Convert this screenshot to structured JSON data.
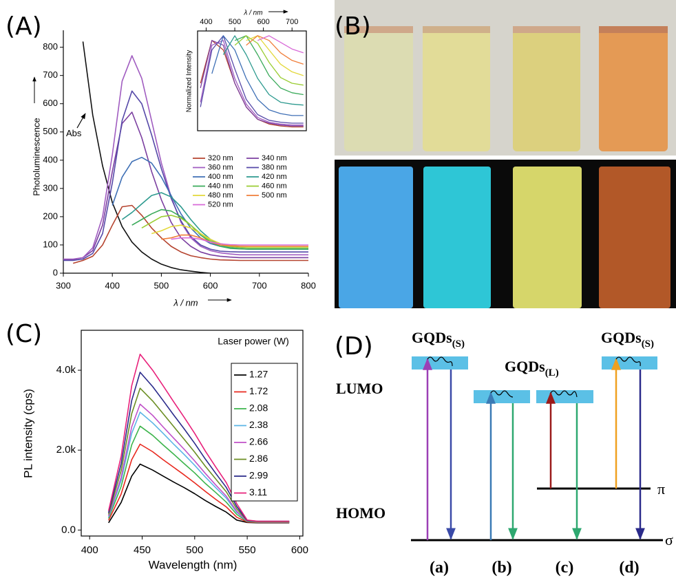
{
  "chart_data": [
    {
      "type": "line",
      "x_label": "λ / nm",
      "y_label": "Photoluminescence",
      "annotation": "Abs",
      "xlim": [
        300,
        800
      ],
      "ylim": [
        0,
        860
      ],
      "xticks": [
        300,
        400,
        500,
        600,
        700,
        800
      ],
      "yticks": [
        0,
        100,
        200,
        300,
        400,
        500,
        600,
        700,
        800
      ],
      "legend": "right",
      "x": [
        300,
        320,
        340,
        360,
        380,
        400,
        420,
        440,
        460,
        480,
        500,
        520,
        540,
        560,
        580,
        600,
        620,
        640,
        660,
        680,
        700,
        720,
        740,
        760,
        780,
        800
      ],
      "series": [
        {
          "name": "Abs",
          "color": "#111111",
          "values": [
            null,
            null,
            820,
            560,
            380,
            250,
            165,
            110,
            75,
            50,
            32,
            20,
            12,
            7,
            3,
            0,
            null,
            null,
            null,
            null,
            null,
            null,
            null,
            null,
            null,
            null
          ]
        },
        {
          "name": "320 nm",
          "color": "#b5432e",
          "values": [
            null,
            35,
            45,
            60,
            100,
            170,
            235,
            240,
            205,
            160,
            125,
            95,
            75,
            62,
            55,
            50,
            47,
            46,
            45,
            45,
            45,
            45,
            45,
            45,
            45,
            45
          ]
        },
        {
          "name": "340 nm",
          "color": "#7b3fa0",
          "values": [
            48,
            48,
            55,
            80,
            170,
            360,
            530,
            570,
            480,
            360,
            260,
            180,
            125,
            95,
            75,
            65,
            60,
            57,
            55,
            55,
            55,
            55,
            55,
            55,
            55,
            55
          ]
        },
        {
          "name": "360 nm",
          "color": "#a05cc0",
          "values": [
            50,
            50,
            55,
            90,
            200,
            420,
            680,
            770,
            690,
            540,
            390,
            270,
            180,
            125,
            95,
            80,
            72,
            68,
            65,
            65,
            65,
            65,
            65,
            65,
            65,
            65
          ]
        },
        {
          "name": "380 nm",
          "color": "#5548a8",
          "values": [
            45,
            45,
            50,
            70,
            140,
            320,
            540,
            645,
            600,
            490,
            370,
            265,
            185,
            130,
            100,
            85,
            78,
            76,
            75,
            75,
            75,
            75,
            75,
            75,
            75,
            75
          ]
        },
        {
          "name": "400 nm",
          "color": "#3e6fb5",
          "values": [
            null,
            null,
            null,
            null,
            null,
            240,
            340,
            395,
            410,
            390,
            340,
            275,
            210,
            160,
            125,
            105,
            95,
            90,
            87,
            85,
            85,
            85,
            85,
            85,
            85,
            85
          ]
        },
        {
          "name": "420 nm",
          "color": "#2d9a8f",
          "values": [
            null,
            null,
            null,
            null,
            null,
            null,
            190,
            215,
            245,
            275,
            285,
            270,
            235,
            190,
            150,
            120,
            100,
            90,
            87,
            85,
            85,
            85,
            85,
            85,
            85,
            85
          ]
        },
        {
          "name": "440 nm",
          "color": "#3aaa5a",
          "values": [
            null,
            null,
            null,
            null,
            null,
            null,
            null,
            170,
            190,
            210,
            225,
            220,
            200,
            170,
            135,
            110,
            95,
            88,
            86,
            85,
            85,
            85,
            85,
            85,
            85,
            85
          ]
        },
        {
          "name": "460 nm",
          "color": "#9acd32",
          "values": [
            null,
            null,
            null,
            null,
            null,
            null,
            null,
            null,
            160,
            180,
            200,
            205,
            195,
            170,
            140,
            115,
            100,
            94,
            91,
            90,
            90,
            90,
            90,
            90,
            90,
            90
          ]
        },
        {
          "name": "480 nm",
          "color": "#e3d83a",
          "values": [
            null,
            null,
            null,
            null,
            null,
            null,
            null,
            null,
            null,
            140,
            150,
            165,
            170,
            160,
            140,
            120,
            105,
            98,
            96,
            95,
            95,
            95,
            95,
            95,
            95,
            95
          ]
        },
        {
          "name": "500 nm",
          "color": "#f07e3a",
          "values": [
            null,
            null,
            null,
            null,
            null,
            null,
            null,
            null,
            null,
            null,
            120,
            125,
            135,
            135,
            125,
            110,
            100,
            97,
            95,
            95,
            95,
            95,
            95,
            95,
            95,
            95
          ]
        },
        {
          "name": "520 nm",
          "color": "#d86ad8",
          "values": [
            null,
            null,
            null,
            null,
            null,
            null,
            null,
            null,
            null,
            null,
            null,
            120,
            125,
            125,
            120,
            110,
            104,
            101,
            100,
            100,
            100,
            100,
            100,
            100,
            100,
            100
          ]
        }
      ]
    },
    {
      "type": "line",
      "x_label": "λ / nm",
      "y_label": "Normalized Intensity",
      "xlim": [
        370,
        750
      ],
      "ylim": [
        0,
        1.05
      ],
      "xticks": [
        400,
        500,
        600,
        700
      ],
      "x": [
        380,
        420,
        460,
        500,
        540,
        580,
        620,
        660,
        700,
        740
      ],
      "series": [
        {
          "color": "#b5432e",
          "values": [
            0.5,
            0.95,
            0.85,
            0.5,
            0.25,
            0.12,
            0.07,
            0.05,
            0.04,
            0.04
          ]
        },
        {
          "color": "#7b3fa0",
          "values": [
            0.45,
            0.95,
            0.9,
            0.5,
            0.25,
            0.12,
            0.08,
            0.06,
            0.05,
            0.05
          ]
        },
        {
          "color": "#a05cc0",
          "values": [
            0.3,
            0.9,
            0.95,
            0.55,
            0.28,
            0.14,
            0.09,
            0.07,
            0.06,
            0.06
          ]
        },
        {
          "color": "#5548a8",
          "values": [
            0.25,
            0.85,
            1,
            0.65,
            0.33,
            0.17,
            0.11,
            0.09,
            0.08,
            0.08
          ]
        },
        {
          "color": "#3e6fb5",
          "values": [
            null,
            0.6,
            1,
            0.85,
            0.55,
            0.33,
            0.22,
            0.18,
            0.16,
            0.16
          ]
        },
        {
          "color": "#2d9a8f",
          "values": [
            null,
            null,
            0.8,
            1,
            0.8,
            0.55,
            0.38,
            0.3,
            0.28,
            0.27
          ]
        },
        {
          "color": "#3aaa5a",
          "values": [
            null,
            null,
            null,
            0.95,
            1,
            0.8,
            0.58,
            0.45,
            0.4,
            0.38
          ]
        },
        {
          "color": "#9acd32",
          "values": [
            null,
            null,
            null,
            0.9,
            1,
            0.92,
            0.72,
            0.56,
            0.5,
            0.48
          ]
        },
        {
          "color": "#e3d83a",
          "values": [
            null,
            null,
            null,
            null,
            0.95,
            1,
            0.85,
            0.7,
            0.62,
            0.58
          ]
        },
        {
          "color": "#f07e3a",
          "values": [
            null,
            null,
            null,
            null,
            0.9,
            1,
            0.95,
            0.82,
            0.74,
            0.7
          ]
        },
        {
          "color": "#d86ad8",
          "values": [
            null,
            null,
            null,
            null,
            null,
            0.95,
            1,
            0.93,
            0.86,
            0.82
          ]
        }
      ]
    },
    {
      "type": "line",
      "x_label": "Wavelength (nm)",
      "y_label": "PL intensity (cps)",
      "legend_title": "Laser power (W)",
      "legend": "upper right",
      "xlim": [
        392,
        603
      ],
      "ylim": [
        -150,
        5000
      ],
      "xticks": [
        400,
        450,
        500,
        550,
        600
      ],
      "yticks": [
        {
          "value": 0,
          "label": "0.0"
        },
        {
          "value": 2000,
          "label": "2.0k"
        },
        {
          "value": 4000,
          "label": "4.0k"
        }
      ],
      "x": [
        418,
        430,
        440,
        448,
        460,
        470,
        480,
        490,
        500,
        510,
        520,
        530,
        540,
        550,
        560,
        570,
        580,
        590
      ],
      "series": [
        {
          "name": "1.27",
          "color": "#000000",
          "values": [
            180,
            690,
            1350,
            1650,
            1500,
            1350,
            1200,
            1060,
            910,
            740,
            590,
            450,
            250,
            190,
            180,
            180,
            180,
            180
          ]
        },
        {
          "name": "1.72",
          "color": "#e8281e",
          "values": [
            240,
            900,
            1760,
            2150,
            1960,
            1760,
            1570,
            1380,
            1180,
            970,
            770,
            580,
            320,
            200,
            190,
            190,
            190,
            190
          ]
        },
        {
          "name": "2.08",
          "color": "#3cb44b",
          "values": [
            290,
            1090,
            2130,
            2600,
            2370,
            2130,
            1900,
            1660,
            1430,
            1170,
            940,
            700,
            390,
            210,
            200,
            200,
            200,
            200
          ]
        },
        {
          "name": "2.38",
          "color": "#5ab4e6",
          "values": [
            320,
            1240,
            2420,
            2950,
            2680,
            2420,
            2150,
            1890,
            1620,
            1330,
            1060,
            800,
            440,
            220,
            200,
            200,
            200,
            200
          ]
        },
        {
          "name": "2.66",
          "color": "#c050c8",
          "values": [
            350,
            1320,
            2580,
            3150,
            2870,
            2580,
            2300,
            2020,
            1730,
            1420,
            1130,
            850,
            470,
            220,
            210,
            210,
            210,
            210
          ]
        },
        {
          "name": "2.86",
          "color": "#6b8e23",
          "values": [
            390,
            1490,
            2910,
            3550,
            3230,
            2910,
            2590,
            2270,
            1950,
            1600,
            1280,
            960,
            530,
            230,
            210,
            210,
            210,
            210
          ]
        },
        {
          "name": "2.99",
          "color": "#2a2a8a",
          "values": [
            430,
            1660,
            3240,
            3950,
            3590,
            3240,
            2880,
            2530,
            2170,
            1780,
            1420,
            1070,
            590,
            240,
            220,
            220,
            220,
            220
          ]
        },
        {
          "name": "3.11",
          "color": "#e8207a",
          "values": [
            480,
            1850,
            3610,
            4400,
            4000,
            3610,
            3210,
            2820,
            2420,
            1980,
            1580,
            1190,
            660,
            250,
            220,
            220,
            220,
            220
          ]
        }
      ]
    }
  ],
  "panel_labels": [
    "(A)",
    "(B)",
    "(C)",
    "(D)"
  ],
  "diagram": {
    "groups": [
      {
        "name": "GQDs",
        "subscript": "(S)"
      },
      {
        "name": "GQDs",
        "subscript": "(L)"
      },
      {
        "name": "GQDs",
        "subscript": "(S)"
      }
    ],
    "levels": {
      "lumo": "LUMO",
      "homo": "HOMO",
      "pi": "π",
      "sigma": "σ"
    },
    "cases": [
      "(a)",
      "(b)",
      "(c)",
      "(d)"
    ]
  }
}
